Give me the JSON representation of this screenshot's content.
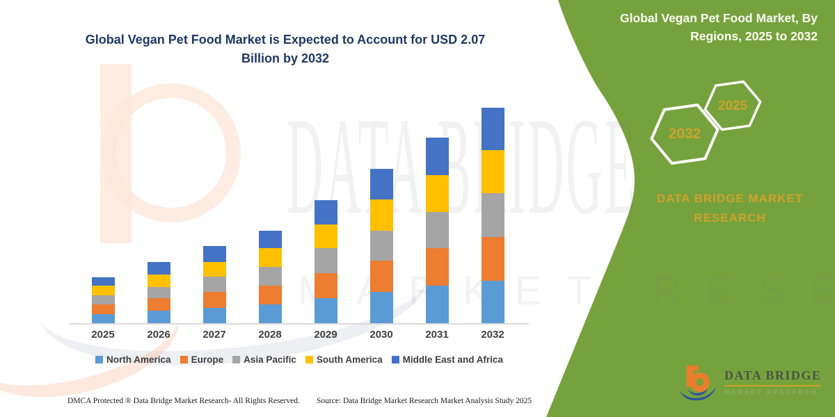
{
  "colors": {
    "panel_green": "#76A23D",
    "title_navy": "#1F3864",
    "gold": "#CDA32F",
    "axis_line": "#D9D9D9",
    "label_gray": "#3F3F3F",
    "hexagon_outline": "#FFFFFF"
  },
  "side_panel": {
    "title": "Global Vegan Pet Food Market, By Regions, 2025 to 2032",
    "hexagon_labels": [
      "2032",
      "2025"
    ],
    "brand": "DATA BRIDGE MARKET RESEARCH"
  },
  "logo": {
    "name": "DATA BRIDGE",
    "subtext": "MARKET RESEARCH"
  },
  "watermark": {
    "line1": "DATA BRIDGE",
    "line2": "MARKET RESEARCH"
  },
  "footer": {
    "dmca": "DMCA Protected ® Data Bridge Market Research-  All Rights Reserved.",
    "source": "Source: Data Bridge Market Research  Market Analysis Study 2025"
  },
  "chart_data": {
    "type": "bar",
    "stacked": true,
    "title": "Global Vegan Pet Food Market is Expected to Account for USD 2.07 Billion by 2032",
    "unit": "USD Billion",
    "xlabel": "",
    "ylabel": "",
    "grid": false,
    "legend_position": "bottom",
    "ylim": [
      0,
      2.2
    ],
    "categories": [
      "2025",
      "2026",
      "2027",
      "2028",
      "2029",
      "2030",
      "2031",
      "2032"
    ],
    "series": [
      {
        "name": "North America",
        "color": "#5B9BD5",
        "values": [
          0.09,
          0.12,
          0.15,
          0.18,
          0.24,
          0.3,
          0.36,
          0.41
        ]
      },
      {
        "name": "Europe",
        "color": "#ED7D31",
        "values": [
          0.09,
          0.12,
          0.15,
          0.18,
          0.24,
          0.3,
          0.36,
          0.42
        ]
      },
      {
        "name": "Asia Pacific",
        "color": "#A5A5A5",
        "values": [
          0.09,
          0.11,
          0.15,
          0.18,
          0.24,
          0.29,
          0.35,
          0.42
        ]
      },
      {
        "name": "South America",
        "color": "#FFC000",
        "values": [
          0.09,
          0.12,
          0.14,
          0.18,
          0.23,
          0.3,
          0.35,
          0.41
        ]
      },
      {
        "name": "Middle East and Africa",
        "color": "#4472C4",
        "values": [
          0.08,
          0.12,
          0.15,
          0.17,
          0.23,
          0.29,
          0.36,
          0.41
        ]
      }
    ],
    "totals": [
      0.44,
      0.59,
      0.74,
      0.89,
      1.18,
      1.48,
      1.78,
      2.07
    ]
  }
}
